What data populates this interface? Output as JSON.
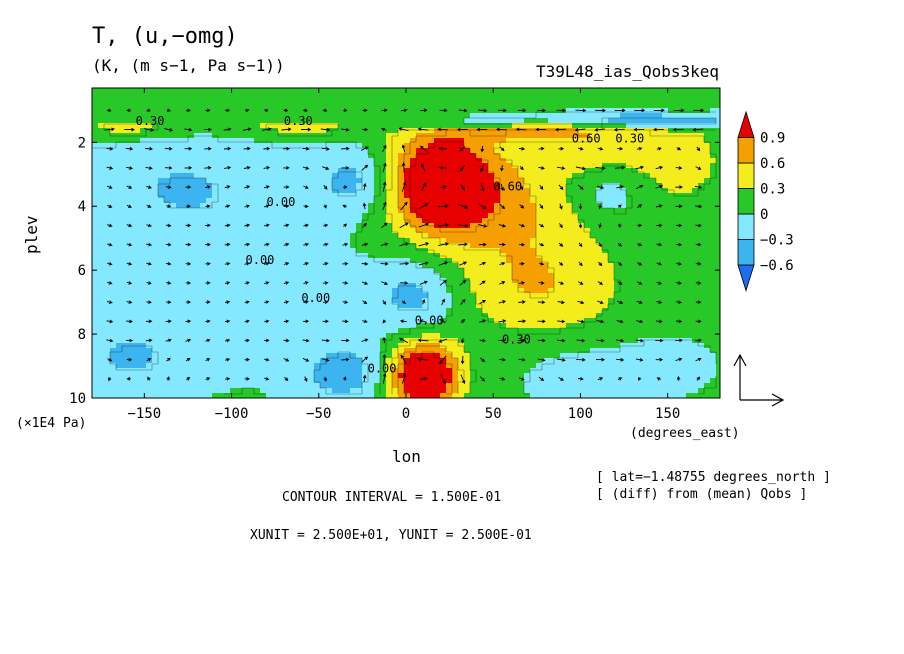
{
  "chart_data": {
    "type": "heatmap",
    "title": "T, (u,−omg)",
    "subtitle": "(K, (m s−1, Pa s−1))",
    "run_label": "T39L48_ias_Qobs3keq",
    "xlabel": "lon",
    "ylabel": "plev",
    "x_unit_label": "(degrees_east)",
    "y_unit_label": "(×1E4 Pa)",
    "xlim": [
      -180,
      180
    ],
    "ylim": [
      10,
      0.3
    ],
    "x_ticks": [
      -150,
      -100,
      -50,
      0,
      50,
      100,
      150
    ],
    "x_tick_labels": [
      "−150",
      "−100",
      "−50",
      "0",
      "50",
      "100",
      "150"
    ],
    "y_ticks": [
      2,
      4,
      6,
      8,
      10
    ],
    "y_tick_labels": [
      "2",
      "4",
      "6",
      "8",
      "10"
    ],
    "colorbar": {
      "levels": [
        -0.6,
        -0.3,
        0,
        0.3,
        0.6,
        0.9
      ],
      "labels": [
        "−0.6",
        "−0.3",
        "0",
        "0.3",
        "0.6",
        "0.9"
      ],
      "colors": [
        "#1e6ef0",
        "#3cb4f0",
        "#84e8ff",
        "#28c828",
        "#f5ec1e",
        "#f5a000",
        "#e60000"
      ]
    },
    "contour_labels": [
      {
        "text": "0.30",
        "lon": -155,
        "p": 1.45
      },
      {
        "text": "0.30",
        "lon": -70,
        "p": 1.45
      },
      {
        "text": "0.60",
        "lon": 95,
        "p": 2.0
      },
      {
        "text": "0.30",
        "lon": 120,
        "p": 2.0
      },
      {
        "text": "0.00",
        "lon": -80,
        "p": 4.0
      },
      {
        "text": "0.00",
        "lon": -92,
        "p": 5.8
      },
      {
        "text": "0.00",
        "lon": -60,
        "p": 7.0
      },
      {
        "text": "0.00",
        "lon": 5,
        "p": 7.7
      },
      {
        "text": "0.30",
        "lon": 55,
        "p": 8.3
      },
      {
        "text": "0.00",
        "lon": -22,
        "p": 9.2
      },
      {
        "text": "0.60",
        "lon": 50,
        "p": 3.5
      }
    ],
    "blobs": [
      {
        "lon": -30,
        "p": 3.2,
        "rl": 22,
        "rp": 1.0,
        "v": -0.45
      },
      {
        "lon": -120,
        "p": 5.5,
        "rl": 70,
        "rp": 3.0,
        "v": -0.32
      },
      {
        "lon": -130,
        "p": 3.2,
        "rl": 45,
        "rp": 1.0,
        "v": -0.2
      },
      {
        "lon": -160,
        "p": 8.8,
        "rl": 35,
        "rp": 1.1,
        "v": -0.32
      },
      {
        "lon": -35,
        "p": 9.2,
        "rl": 28,
        "rp": 1.0,
        "v": -0.5
      },
      {
        "lon": 5,
        "p": 6.8,
        "rl": 25,
        "rp": 1.2,
        "v": -0.5
      },
      {
        "lon": 115,
        "p": 3.6,
        "rl": 25,
        "rp": 1.0,
        "v": -0.35
      },
      {
        "lon": 100,
        "p": 9.4,
        "rl": 25,
        "rp": 0.8,
        "v": -0.35
      },
      {
        "lon": 145,
        "p": 9.0,
        "rl": 25,
        "rp": 0.8,
        "v": -0.3
      },
      {
        "lon": 35,
        "p": 1.4,
        "rl": 45,
        "rp": 0.3,
        "v": -0.6
      },
      {
        "lon": 140,
        "p": 1.3,
        "rl": 60,
        "rp": 0.25,
        "v": -0.7
      },
      {
        "lon": 20,
        "p": 3.2,
        "rl": 28,
        "rp": 1.5,
        "v": 1.4
      },
      {
        "lon": 10,
        "p": 9.3,
        "rl": 20,
        "rp": 1.1,
        "v": 1.5
      },
      {
        "lon": 60,
        "p": 4.0,
        "rl": 55,
        "rp": 1.8,
        "v": 0.55
      },
      {
        "lon": 75,
        "p": 6.6,
        "rl": 50,
        "rp": 1.5,
        "v": 0.5
      },
      {
        "lon": 100,
        "p": 2.4,
        "rl": 35,
        "rp": 0.6,
        "v": 0.35
      },
      {
        "lon": 155,
        "p": 2.6,
        "rl": 30,
        "rp": 1.4,
        "v": 0.4
      },
      {
        "lon": -160,
        "p": 1.5,
        "rl": 30,
        "rp": 0.3,
        "v": 0.4
      },
      {
        "lon": -60,
        "p": 1.5,
        "rl": 40,
        "rp": 0.3,
        "v": 0.4
      },
      {
        "lon": 70,
        "p": 1.6,
        "rl": 60,
        "rp": 0.35,
        "v": 0.7
      }
    ],
    "baseline_value": 0.05
  },
  "footer": {
    "lat_note": "[ lat=−1.48755 degrees_north ]",
    "diff_note": "[ (diff) from (mean) Qobs ]",
    "contour_interval": "CONTOUR INTERVAL = 1.500E-01",
    "units": "XUNIT = 2.500E+01, YUNIT = 2.500E-01"
  }
}
